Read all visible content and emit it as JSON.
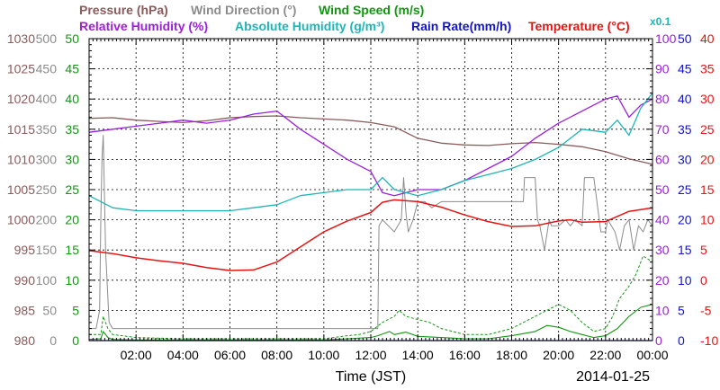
{
  "chart_data": {
    "type": "line",
    "date": "2014-01-25",
    "xlabel": "Time (JST)",
    "x_range_hours": [
      0,
      24
    ],
    "x_ticks": [
      "02:00",
      "04:00",
      "06:00",
      "08:00",
      "10:00",
      "12:00",
      "14:00",
      "16:00",
      "18:00",
      "20:00",
      "22:00",
      "00:00"
    ],
    "grid": true,
    "headers": {
      "row1": [
        {
          "text": "Pressure (hPa)",
          "color": "#8b5a5a"
        },
        {
          "text": "Wind Direction (°)",
          "color": "#8c8c8c"
        },
        {
          "text": "Wind Speed (m/s)",
          "color": "#129612"
        }
      ],
      "row2": [
        {
          "text": "Relative Humidity (%)",
          "color": "#9b1fdc"
        },
        {
          "text": "Absolute Humidity (g/m³)",
          "color": "#1fb5b5"
        },
        {
          "text": "Rain Rate(mm/h)",
          "color": "#1414c8"
        },
        {
          "text": "Temperature (°C)",
          "color": "#e61414"
        },
        {
          "text": "x0.1",
          "color": "#1fb5b5"
        }
      ]
    },
    "left_axes": {
      "pressure": {
        "color": "#8b5a5a",
        "range": [
          980,
          1030
        ],
        "ticks": [
          "1030",
          "1025",
          "1020",
          "1015",
          "1010",
          "1005",
          "1000",
          "995",
          "990",
          "985",
          "980"
        ]
      },
      "wind_direction": {
        "color": "#8c8c8c",
        "range": [
          0,
          500
        ],
        "ticks": [
          "500",
          "450",
          "400",
          "350",
          "300",
          "250",
          "200",
          "150",
          "100",
          "50",
          "0"
        ]
      },
      "wind_speed": {
        "color": "#129612",
        "range": [
          0,
          50
        ],
        "ticks": [
          "50",
          "45",
          "40",
          "35",
          "30",
          "25",
          "20",
          "15",
          "10",
          "5",
          "0"
        ]
      }
    },
    "right_axes": {
      "humidity": {
        "color": "#9b1fdc",
        "range": [
          0,
          100
        ],
        "ticks": [
          "100",
          "90",
          "80",
          "70",
          "60",
          "50",
          "40",
          "30",
          "20",
          "10",
          "0"
        ]
      },
      "rain_rate": {
        "color": "#1414c8",
        "range": [
          0,
          50
        ],
        "ticks": [
          "50",
          "45",
          "40",
          "35",
          "30",
          "25",
          "20",
          "15",
          "10",
          "5",
          "0"
        ]
      },
      "temperature": {
        "color": "#e61414",
        "range": [
          -10,
          40
        ],
        "ticks": [
          "40",
          "35",
          "30",
          "25",
          "20",
          "15",
          "10",
          "5",
          "0",
          "-5",
          "-10"
        ]
      }
    },
    "series": [
      {
        "name": "Pressure (hPa)",
        "axis": "pressure",
        "color": "#8b5a5a",
        "x": [
          0,
          1,
          2,
          3,
          4,
          5,
          6,
          7,
          8,
          9,
          10,
          11,
          12,
          13,
          14,
          15,
          16,
          17,
          18,
          19,
          20,
          21,
          22,
          23,
          24
        ],
        "y": [
          1016.8,
          1016.9,
          1016.5,
          1016.3,
          1016.1,
          1016.4,
          1016.9,
          1017.1,
          1017.2,
          1016.9,
          1016.7,
          1016.5,
          1016.1,
          1015.4,
          1013.5,
          1012.7,
          1012.4,
          1012.3,
          1012.6,
          1012.8,
          1012.5,
          1012.1,
          1011.3,
          1010.1,
          1009.2
        ]
      },
      {
        "name": "Wind Direction (°)",
        "axis": "wind_direction",
        "color": "#8c8c8c",
        "width": 1,
        "x": [
          0,
          0.3,
          0.45,
          0.5,
          0.55,
          0.6,
          0.7,
          0.85,
          1,
          4,
          8,
          11,
          12.3,
          12.35,
          12.5,
          13,
          13.3,
          13.4,
          13.5,
          13.6,
          13.8,
          14,
          14.3,
          14.6,
          15,
          16,
          17,
          18,
          18.5,
          18.55,
          19,
          19.1,
          19.2,
          19.4,
          19.6,
          19.7,
          20,
          20.3,
          20.5,
          20.7,
          21,
          21.1,
          21.2,
          21.3,
          21.5,
          21.8,
          22,
          22.1,
          22.4,
          22.6,
          22.8,
          23,
          23.2,
          23.4,
          23.6,
          23.8,
          24
        ],
        "y": [
          20,
          20,
          50,
          200,
          300,
          340,
          150,
          30,
          20,
          20,
          20,
          20,
          20,
          190,
          200,
          180,
          200,
          270,
          210,
          180,
          200,
          230,
          230,
          220,
          230,
          230,
          230,
          230,
          230,
          270,
          270,
          200,
          190,
          150,
          200,
          190,
          190,
          200,
          190,
          200,
          190,
          270,
          270,
          270,
          270,
          180,
          180,
          200,
          180,
          150,
          190,
          200,
          150,
          190,
          180,
          200,
          190
        ]
      },
      {
        "name": "Wind Speed (m/s) solid",
        "axis": "wind_speed",
        "color": "#129612",
        "width": 1.1,
        "x": [
          0,
          0.5,
          0.6,
          0.8,
          1,
          2,
          4,
          6,
          8,
          10,
          11,
          12,
          12.3,
          12.8,
          13,
          13.5,
          14,
          15,
          16,
          17,
          18,
          19,
          19.5,
          20,
          20.5,
          21,
          21.5,
          22,
          22.5,
          23,
          23.5,
          24
        ],
        "y": [
          0.2,
          0.3,
          1.5,
          0.5,
          0.2,
          0.1,
          0.1,
          0.1,
          0.1,
          0.1,
          0.3,
          0.5,
          0.8,
          1.5,
          1,
          1.4,
          0.7,
          0.5,
          0.3,
          0.3,
          0.8,
          1.5,
          2.5,
          2.2,
          1.5,
          1,
          0.5,
          0.8,
          2,
          4,
          5.5,
          6
        ]
      },
      {
        "name": "Wind Speed (m/s) dashed",
        "axis": "wind_speed",
        "color": "#129612",
        "width": 1,
        "dash": "3,2",
        "x": [
          0,
          0.5,
          0.6,
          0.8,
          1,
          2,
          4,
          6,
          8,
          10,
          11,
          11.5,
          12,
          12.5,
          13,
          13.2,
          13.5,
          14,
          14.5,
          15,
          16,
          17,
          18,
          18.5,
          19,
          19.5,
          20,
          20.5,
          21,
          21.5,
          22,
          22.3,
          22.6,
          23,
          23.3,
          23.6,
          24
        ],
        "y": [
          1,
          1,
          4,
          2,
          1,
          0.5,
          0.3,
          0.3,
          0.3,
          0.3,
          0.8,
          1,
          1.5,
          3,
          4,
          5,
          4,
          3.5,
          3,
          2,
          1,
          1,
          2,
          3,
          4,
          5,
          6,
          5,
          3,
          1.5,
          2,
          4,
          7,
          9,
          11,
          14,
          13
        ]
      },
      {
        "name": "Relative Humidity (%)",
        "axis": "humidity",
        "color": "#9b1fdc",
        "x": [
          0,
          1,
          2,
          3,
          4,
          5,
          6,
          7,
          8,
          9,
          10,
          11,
          12,
          12.5,
          13,
          14,
          15,
          16,
          17,
          18,
          19,
          20,
          21,
          22,
          22.5,
          23,
          23.5,
          24
        ],
        "y": [
          69,
          70,
          71,
          72,
          73,
          72,
          73,
          75,
          76,
          70,
          65,
          60,
          56,
          49,
          48,
          50,
          50,
          53,
          57,
          61,
          67,
          72,
          76,
          80,
          81,
          74,
          78,
          80
        ]
      },
      {
        "name": "Absolute Humidity (g/m³)",
        "axis": "humidity",
        "color": "#1fb5b5",
        "x": [
          0,
          1,
          2,
          3,
          4,
          5,
          6,
          7,
          8,
          9,
          10,
          11,
          12,
          12.5,
          13,
          14,
          15,
          16,
          17,
          18,
          19,
          20,
          21,
          22,
          22.5,
          23,
          23.5,
          24
        ],
        "y": [
          48,
          44,
          43,
          43,
          43,
          43,
          43,
          44,
          45,
          48,
          49,
          50,
          50,
          54,
          50,
          48,
          50,
          53,
          55,
          57,
          60,
          64,
          70,
          69,
          73,
          68,
          77,
          82
        ]
      },
      {
        "name": "Rain Rate(mm/h)",
        "axis": "rain_rate",
        "color": "#1414c8",
        "width": 1.2,
        "x": [
          0,
          24
        ],
        "y": [
          0,
          0
        ]
      },
      {
        "name": "Temperature (°C)",
        "axis": "temperature",
        "color": "#e61414",
        "width": 1.5,
        "x": [
          0,
          1,
          2,
          3,
          4,
          5,
          6,
          7,
          8,
          9,
          10,
          11,
          12,
          12.5,
          13,
          14,
          15,
          16,
          17,
          18,
          19,
          20,
          20.5,
          21,
          22,
          23,
          24
        ],
        "y": [
          4.9,
          4.4,
          3.7,
          3.2,
          2.8,
          2.1,
          1.6,
          1.7,
          3,
          5.5,
          8,
          9.8,
          11.2,
          12.9,
          13.3,
          13,
          12.1,
          10.8,
          9.7,
          8.9,
          9,
          9.8,
          10,
          9.6,
          9.7,
          11.4,
          12
        ]
      }
    ]
  }
}
